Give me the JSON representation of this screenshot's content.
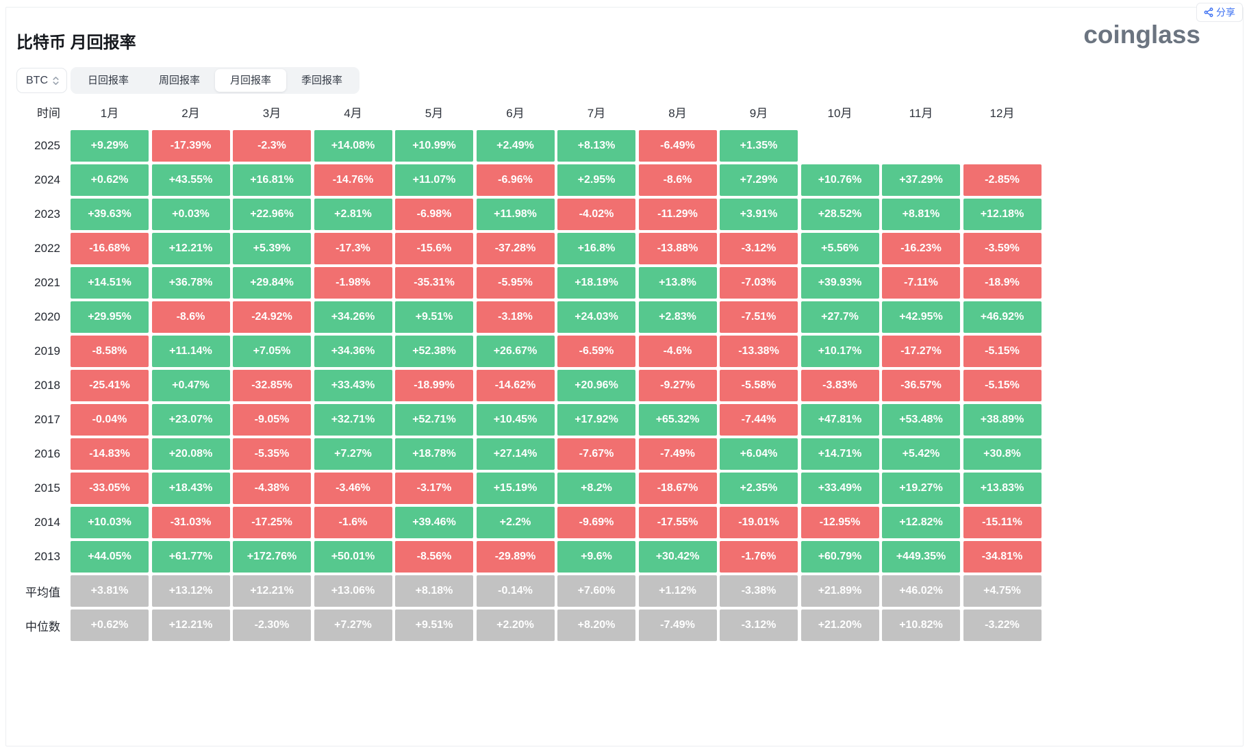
{
  "header": {
    "title": "比特币 月回报率",
    "share_label": "分享",
    "logo": "coinglass",
    "coin_selector": "BTC",
    "tabs": [
      {
        "label": "日回报率",
        "active": false
      },
      {
        "label": "周回报率",
        "active": false
      },
      {
        "label": "月回报率",
        "active": true
      },
      {
        "label": "季回报率",
        "active": false
      }
    ]
  },
  "colors": {
    "positive": "#56c88e",
    "negative": "#f17070",
    "summary": "#c2c2c2",
    "share_accent": "#3a6ff2"
  },
  "table": {
    "time_header": "时间",
    "month_headers": [
      "1月",
      "2月",
      "3月",
      "4月",
      "5月",
      "6月",
      "7月",
      "8月",
      "9月",
      "10月",
      "11月",
      "12月"
    ],
    "rows": [
      {
        "label": "2025",
        "type": "year",
        "values": [
          "+9.29%",
          "-17.39%",
          "-2.3%",
          "+14.08%",
          "+10.99%",
          "+2.49%",
          "+8.13%",
          "-6.49%",
          "+1.35%",
          "",
          "",
          ""
        ]
      },
      {
        "label": "2024",
        "type": "year",
        "values": [
          "+0.62%",
          "+43.55%",
          "+16.81%",
          "-14.76%",
          "+11.07%",
          "-6.96%",
          "+2.95%",
          "-8.6%",
          "+7.29%",
          "+10.76%",
          "+37.29%",
          "-2.85%"
        ]
      },
      {
        "label": "2023",
        "type": "year",
        "values": [
          "+39.63%",
          "+0.03%",
          "+22.96%",
          "+2.81%",
          "-6.98%",
          "+11.98%",
          "-4.02%",
          "-11.29%",
          "+3.91%",
          "+28.52%",
          "+8.81%",
          "+12.18%"
        ]
      },
      {
        "label": "2022",
        "type": "year",
        "values": [
          "-16.68%",
          "+12.21%",
          "+5.39%",
          "-17.3%",
          "-15.6%",
          "-37.28%",
          "+16.8%",
          "-13.88%",
          "-3.12%",
          "+5.56%",
          "-16.23%",
          "-3.59%"
        ]
      },
      {
        "label": "2021",
        "type": "year",
        "values": [
          "+14.51%",
          "+36.78%",
          "+29.84%",
          "-1.98%",
          "-35.31%",
          "-5.95%",
          "+18.19%",
          "+13.8%",
          "-7.03%",
          "+39.93%",
          "-7.11%",
          "-18.9%"
        ]
      },
      {
        "label": "2020",
        "type": "year",
        "values": [
          "+29.95%",
          "-8.6%",
          "-24.92%",
          "+34.26%",
          "+9.51%",
          "-3.18%",
          "+24.03%",
          "+2.83%",
          "-7.51%",
          "+27.7%",
          "+42.95%",
          "+46.92%"
        ]
      },
      {
        "label": "2019",
        "type": "year",
        "values": [
          "-8.58%",
          "+11.14%",
          "+7.05%",
          "+34.36%",
          "+52.38%",
          "+26.67%",
          "-6.59%",
          "-4.6%",
          "-13.38%",
          "+10.17%",
          "-17.27%",
          "-5.15%"
        ]
      },
      {
        "label": "2018",
        "type": "year",
        "values": [
          "-25.41%",
          "+0.47%",
          "-32.85%",
          "+33.43%",
          "-18.99%",
          "-14.62%",
          "+20.96%",
          "-9.27%",
          "-5.58%",
          "-3.83%",
          "-36.57%",
          "-5.15%"
        ]
      },
      {
        "label": "2017",
        "type": "year",
        "values": [
          "-0.04%",
          "+23.07%",
          "-9.05%",
          "+32.71%",
          "+52.71%",
          "+10.45%",
          "+17.92%",
          "+65.32%",
          "-7.44%",
          "+47.81%",
          "+53.48%",
          "+38.89%"
        ]
      },
      {
        "label": "2016",
        "type": "year",
        "values": [
          "-14.83%",
          "+20.08%",
          "-5.35%",
          "+7.27%",
          "+18.78%",
          "+27.14%",
          "-7.67%",
          "-7.49%",
          "+6.04%",
          "+14.71%",
          "+5.42%",
          "+30.8%"
        ]
      },
      {
        "label": "2015",
        "type": "year",
        "values": [
          "-33.05%",
          "+18.43%",
          "-4.38%",
          "-3.46%",
          "-3.17%",
          "+15.19%",
          "+8.2%",
          "-18.67%",
          "+2.35%",
          "+33.49%",
          "+19.27%",
          "+13.83%"
        ]
      },
      {
        "label": "2014",
        "type": "year",
        "values": [
          "+10.03%",
          "-31.03%",
          "-17.25%",
          "-1.6%",
          "+39.46%",
          "+2.2%",
          "-9.69%",
          "-17.55%",
          "-19.01%",
          "-12.95%",
          "+12.82%",
          "-15.11%"
        ]
      },
      {
        "label": "2013",
        "type": "year",
        "values": [
          "+44.05%",
          "+61.77%",
          "+172.76%",
          "+50.01%",
          "-8.56%",
          "-29.89%",
          "+9.6%",
          "+30.42%",
          "-1.76%",
          "+60.79%",
          "+449.35%",
          "-34.81%"
        ]
      },
      {
        "label": "平均值",
        "type": "summary",
        "values": [
          "+3.81%",
          "+13.12%",
          "+12.21%",
          "+13.06%",
          "+8.18%",
          "-0.14%",
          "+7.60%",
          "+1.12%",
          "-3.38%",
          "+21.89%",
          "+46.02%",
          "+4.75%"
        ]
      },
      {
        "label": "中位数",
        "type": "summary",
        "values": [
          "+0.62%",
          "+12.21%",
          "-2.30%",
          "+7.27%",
          "+9.51%",
          "+2.20%",
          "+8.20%",
          "-7.49%",
          "-3.12%",
          "+21.20%",
          "+10.82%",
          "-3.22%"
        ]
      }
    ]
  }
}
